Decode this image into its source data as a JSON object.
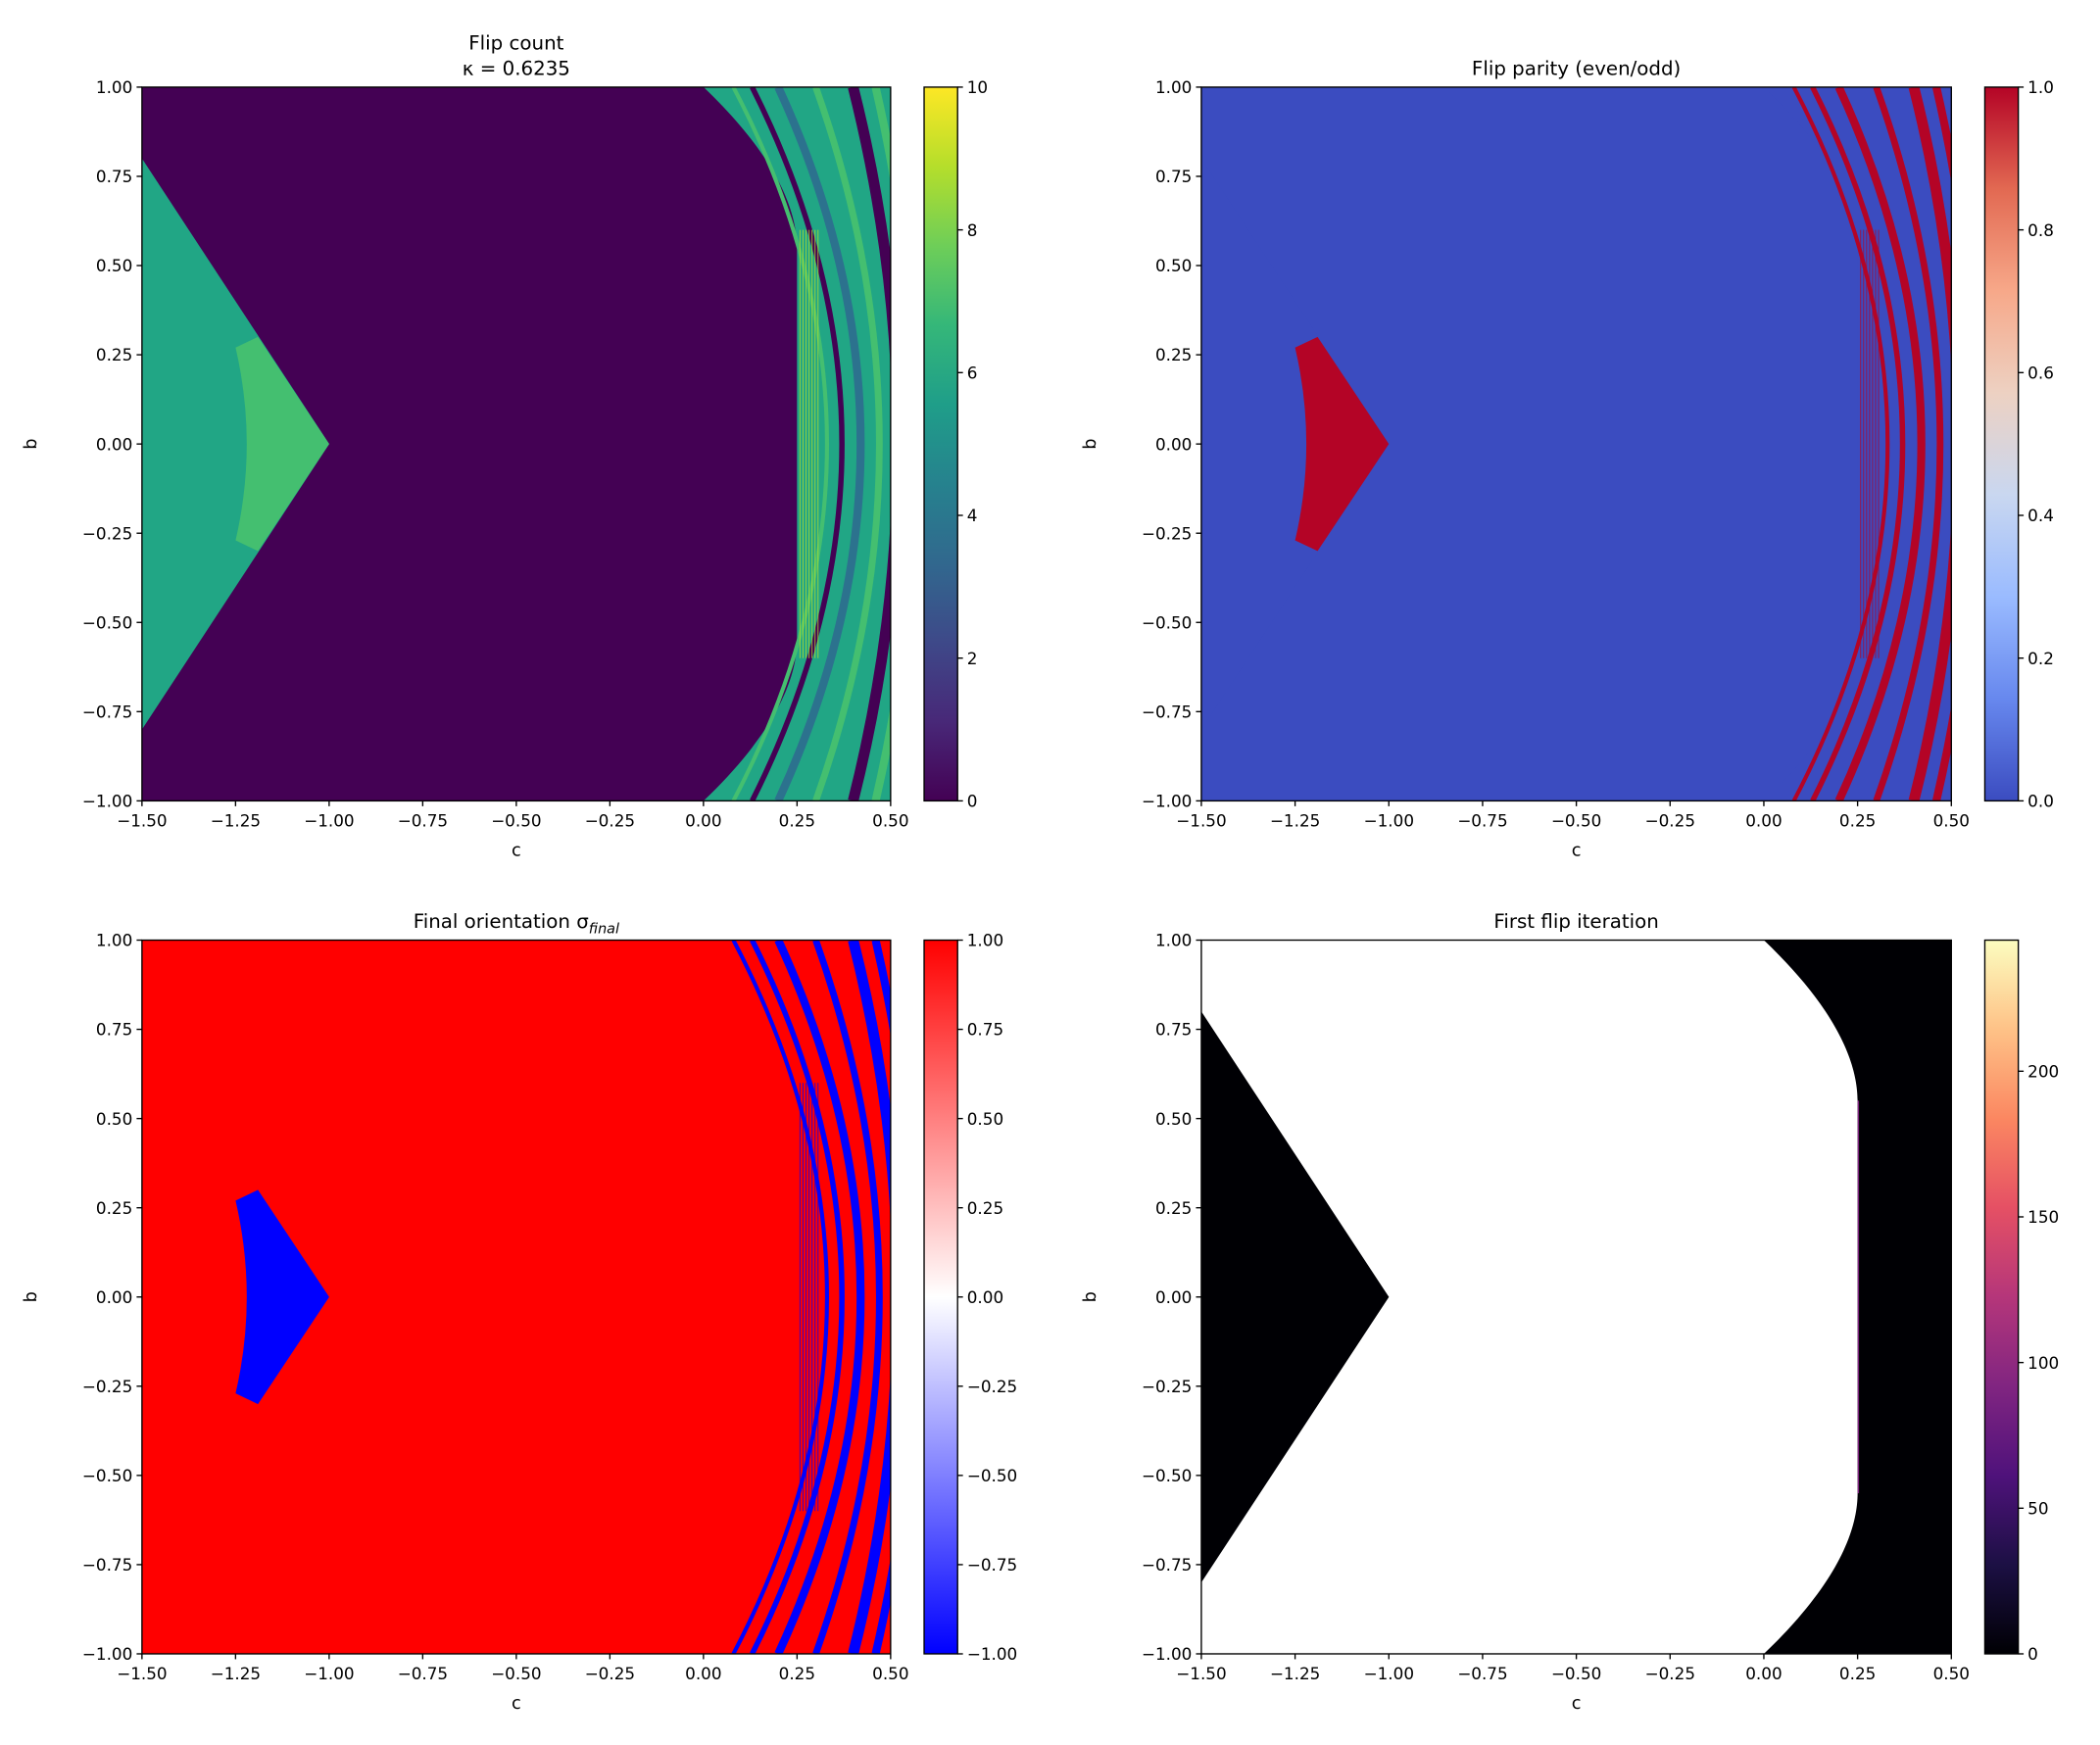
{
  "chart_data": {
    "type": "heatmap",
    "layout": "2x2 grid",
    "panels": [
      {
        "title": "Flip count",
        "subtitle": "κ = 0.6235",
        "xlabel": "c",
        "ylabel": "b",
        "xlim": [
          -1.5,
          0.5
        ],
        "ylim": [
          -1.0,
          1.0
        ],
        "xticks": [
          -1.5,
          -1.25,
          -1.0,
          -0.75,
          -0.5,
          -0.25,
          0.0,
          0.25,
          0.5
        ],
        "xtick_labels": [
          "−1.50",
          "−1.25",
          "−1.00",
          "−0.75",
          "−0.50",
          "−0.25",
          "0.00",
          "0.25",
          "0.50"
        ],
        "yticks": [
          1.0,
          0.75,
          0.5,
          0.25,
          0.0,
          -0.25,
          -0.5,
          -0.75,
          -1.0
        ],
        "ytick_labels": [
          "1.00",
          "0.75",
          "0.50",
          "0.25",
          "0.00",
          "−0.25",
          "−0.50",
          "−0.75",
          "−1.00"
        ],
        "colormap": "viridis",
        "cbar_range": [
          0,
          10
        ],
        "cbar_ticks": [
          0,
          2,
          4,
          6,
          8,
          10
        ],
        "cbar_tick_labels": [
          "0",
          "2",
          "4",
          "6",
          "8",
          "10"
        ],
        "cmap_stops": [
          "#440154",
          "#482878",
          "#3e4989",
          "#31688e",
          "#26828e",
          "#1f9e89",
          "#35b779",
          "#6ece58",
          "#b5de2b",
          "#fde725"
        ],
        "colors": {
          "base": "#440154",
          "wedge": "#21a685",
          "inner": "#44bf70",
          "right": "#21a685",
          "stripes": [
            "#44bf70",
            "#440154",
            "#2c728e",
            "#44bf70",
            "#440154",
            "#44bf70"
          ],
          "fringe": "#b5de2b"
        }
      },
      {
        "title": "Flip parity (even/odd)",
        "xlabel": "c",
        "ylabel": "b",
        "xlim": [
          -1.5,
          0.5
        ],
        "ylim": [
          -1.0,
          1.0
        ],
        "xticks": [
          -1.5,
          -1.25,
          -1.0,
          -0.75,
          -0.5,
          -0.25,
          0.0,
          0.25,
          0.5
        ],
        "xtick_labels": [
          "−1.50",
          "−1.25",
          "−1.00",
          "−0.75",
          "−0.50",
          "−0.25",
          "0.00",
          "0.25",
          "0.50"
        ],
        "yticks": [
          1.0,
          0.75,
          0.5,
          0.25,
          0.0,
          -0.25,
          -0.5,
          -0.75,
          -1.0
        ],
        "ytick_labels": [
          "1.00",
          "0.75",
          "0.50",
          "0.25",
          "0.00",
          "−0.25",
          "−0.50",
          "−0.75",
          "−1.00"
        ],
        "colormap": "coolwarm",
        "cbar_range": [
          0,
          1
        ],
        "cbar_ticks": [
          0,
          0.2,
          0.4,
          0.6,
          0.8,
          1.0
        ],
        "cbar_tick_labels": [
          "0.0",
          "0.2",
          "0.4",
          "0.6",
          "0.8",
          "1.0"
        ],
        "cmap_stops": [
          "#3b4cc0",
          "#6788ee",
          "#9abbff",
          "#c9d7f0",
          "#edd1c2",
          "#f7a889",
          "#e26952",
          "#b40426"
        ],
        "colors": {
          "base": "#3b4cc0",
          "wedge": "#3b4cc0",
          "inner": "#b40426",
          "right": "#3b4cc0",
          "stripes": [
            "#b40426",
            "#b40426",
            "#b40426",
            "#b40426",
            "#b40426",
            "#b40426"
          ],
          "fringe": "#b40426"
        }
      },
      {
        "title": "Final orientation σ",
        "title_sub": "final",
        "xlabel": "c",
        "ylabel": "b",
        "xlim": [
          -1.5,
          0.5
        ],
        "ylim": [
          -1.0,
          1.0
        ],
        "xticks": [
          -1.5,
          -1.25,
          -1.0,
          -0.75,
          -0.5,
          -0.25,
          0.0,
          0.25,
          0.5
        ],
        "xtick_labels": [
          "−1.50",
          "−1.25",
          "−1.00",
          "−0.75",
          "−0.50",
          "−0.25",
          "0.00",
          "0.25",
          "0.50"
        ],
        "yticks": [
          1.0,
          0.75,
          0.5,
          0.25,
          0.0,
          -0.25,
          -0.5,
          -0.75,
          -1.0
        ],
        "ytick_labels": [
          "1.00",
          "0.75",
          "0.50",
          "0.25",
          "0.00",
          "−0.25",
          "−0.50",
          "−0.75",
          "−1.00"
        ],
        "colormap": "bwr",
        "cbar_range": [
          -1,
          1
        ],
        "cbar_ticks": [
          -1,
          -0.75,
          -0.5,
          -0.25,
          0,
          0.25,
          0.5,
          0.75,
          1
        ],
        "cbar_tick_labels": [
          "−1.00",
          "−0.75",
          "−0.50",
          "−0.25",
          "0.00",
          "0.25",
          "0.50",
          "0.75",
          "1.00"
        ],
        "cmap_stops": [
          "#0000ff",
          "#ffffff",
          "#ff0000"
        ],
        "colors": {
          "base": "#ff0000",
          "wedge": "#ff0000",
          "inner": "#0000ff",
          "right": "#ff0000",
          "stripes": [
            "#0000ff",
            "#0000ff",
            "#0000ff",
            "#0000ff",
            "#0000ff",
            "#0000ff"
          ],
          "fringe": "#0000ff"
        }
      },
      {
        "title": "First flip iteration",
        "xlabel": "c",
        "ylabel": "b",
        "xlim": [
          -1.5,
          0.5
        ],
        "ylim": [
          -1.0,
          1.0
        ],
        "xticks": [
          -1.5,
          -1.25,
          -1.0,
          -0.75,
          -0.5,
          -0.25,
          0.0,
          0.25,
          0.5
        ],
        "xtick_labels": [
          "−1.50",
          "−1.25",
          "−1.00",
          "−0.75",
          "−0.50",
          "−0.25",
          "0.00",
          "0.25",
          "0.50"
        ],
        "yticks": [
          1.0,
          0.75,
          0.5,
          0.25,
          0.0,
          -0.25,
          -0.5,
          -0.75,
          -1.0
        ],
        "ytick_labels": [
          "1.00",
          "0.75",
          "0.50",
          "0.25",
          "0.00",
          "−0.25",
          "−0.50",
          "−0.75",
          "−1.00"
        ],
        "colormap": "magma",
        "cbar_range": [
          0,
          245
        ],
        "cbar_ticks": [
          0,
          50,
          100,
          150,
          200
        ],
        "cbar_tick_labels": [
          "0",
          "50",
          "100",
          "150",
          "200"
        ],
        "cmap_stops": [
          "#000004",
          "#1c1044",
          "#4f127b",
          "#812581",
          "#b5367a",
          "#e55064",
          "#fb8761",
          "#fec287",
          "#fcfdbf"
        ],
        "colors": {
          "base": "#ffffff",
          "wedge": "#000004",
          "inner": "#000004",
          "right": "#000004",
          "stripes": [],
          "fringe": "#812581"
        }
      }
    ]
  }
}
